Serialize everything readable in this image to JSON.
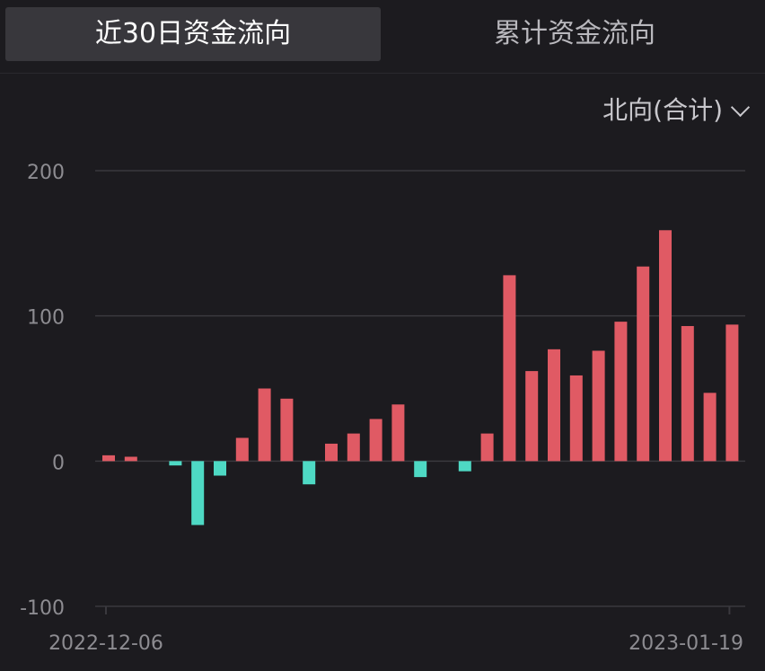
{
  "tabs": {
    "recent": "近30日资金流向",
    "cumulative": "累计资金流向"
  },
  "selector": {
    "label": "北向(合计)"
  },
  "colors": {
    "positive": "#e05a64",
    "negative": "#4ed9c4",
    "grid": "#3a393e",
    "axis_text": "#8d8c91"
  },
  "chart_data": {
    "type": "bar",
    "ylim": [
      -100,
      200
    ],
    "yticks": [
      200,
      100,
      0,
      -100
    ],
    "ytick_labels": [
      "200",
      "100",
      "0",
      "-100"
    ],
    "x_start_label": "2022-12-06",
    "x_end_label": "2023-01-19",
    "values": [
      4,
      3,
      null,
      -3,
      -44,
      -10,
      16,
      50,
      43,
      -16,
      12,
      19,
      29,
      39,
      -11,
      null,
      -7,
      19,
      128,
      62,
      77,
      59,
      76,
      96,
      134,
      159,
      93,
      47,
      94
    ]
  }
}
